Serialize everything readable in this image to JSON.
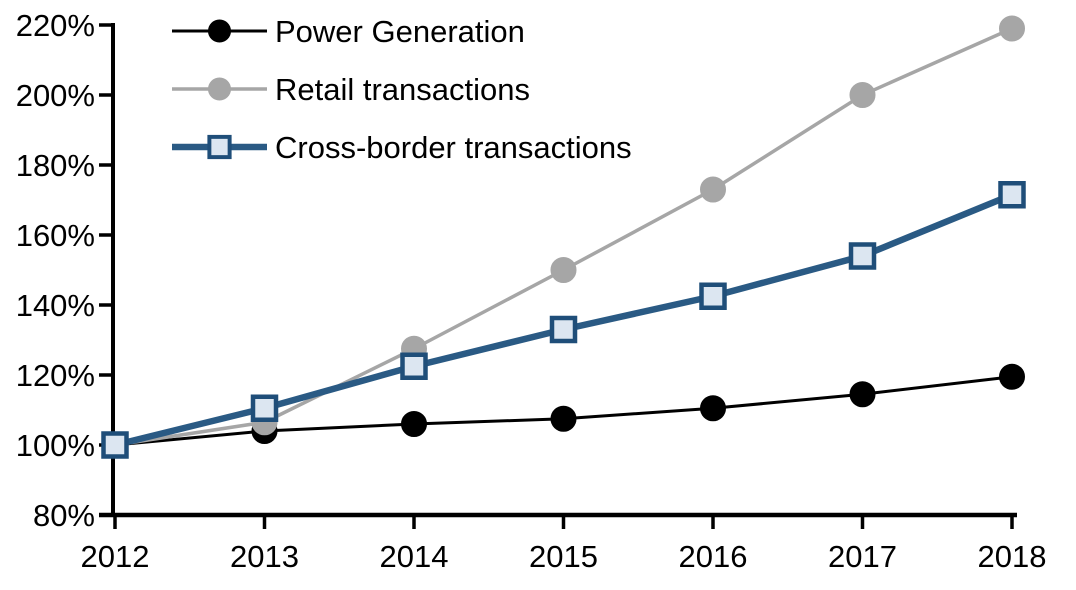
{
  "chart_data": {
    "type": "line",
    "x": [
      2012,
      2013,
      2014,
      2015,
      2016,
      2017,
      2018
    ],
    "xtick_labels": [
      "2012",
      "2013",
      "2014",
      "2015",
      "2016",
      "2017",
      "2018"
    ],
    "ytick_labels": [
      "80%",
      "100%",
      "120%",
      "140%",
      "160%",
      "180%",
      "200%",
      "220%"
    ],
    "ylim": [
      80,
      220
    ],
    "ytick_step": 20,
    "grid": false,
    "legend_position": "top-left-inside",
    "background": "#ffffff",
    "axis_color": "#000000",
    "series": [
      {
        "name": "Power Generation",
        "values": [
          100,
          104,
          106,
          107.5,
          110.5,
          114.5,
          119.5
        ],
        "line_color": "#000000",
        "line_width": 3,
        "marker": "circle",
        "marker_fill": "#000000",
        "marker_stroke": "#000000"
      },
      {
        "name": "Retail transactions",
        "values": [
          100,
          106.5,
          127.5,
          150,
          173,
          200,
          219
        ],
        "line_color": "#a6a6a6",
        "line_width": 3.5,
        "marker": "circle",
        "marker_fill": "#a6a6a6",
        "marker_stroke": "#a6a6a6"
      },
      {
        "name": "Cross-border transactions",
        "values": [
          100,
          110.5,
          122.5,
          133,
          142.5,
          154,
          171.5
        ],
        "line_color": "#2a5a84",
        "line_width": 6.5,
        "marker": "square",
        "marker_fill": "#dce6f1",
        "marker_stroke": "#1f4e79"
      }
    ]
  }
}
